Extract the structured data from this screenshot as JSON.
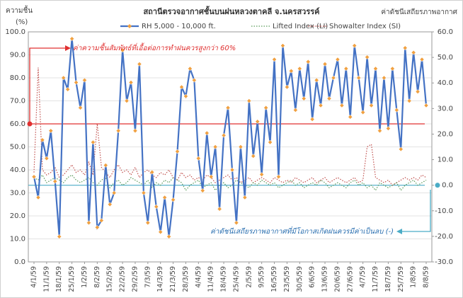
{
  "chart_data": {
    "type": "line",
    "title": "สถานีตรวจอากาศชั้นบนฝนหลวงตาคลี จ.นครสวรรค์",
    "y_label": [
      "ความชื้น",
      "(%)"
    ],
    "y2_label": "ค่าดัชนีเสถียรภาพอากาศ",
    "annotations": [
      "ค่าความชื้นสัมพัทธ์ที่เอื้อต่อการทำฝนควรสูงกว่า 60%",
      "ค่าดัชนีเสถียรภาพอากาศที่มีโอกาสเกิดฝนควรมีค่าเป็นลบ (-)"
    ],
    "threshold_lines": [
      {
        "value": 60,
        "axis": "y",
        "color": "#e03030"
      },
      {
        "value": 0,
        "axis": "y2",
        "color": "#4bacc6"
      }
    ],
    "categories": [
      "4/1/59",
      null,
      null,
      "11/1/59",
      null,
      null,
      "18/1/59",
      null,
      null,
      "25/1/59",
      null,
      null,
      "1/2/59",
      null,
      null,
      "8/2/59",
      null,
      null,
      "15/2/59",
      null,
      null,
      "22/2/59",
      null,
      null,
      "29/2/59",
      null,
      null,
      "7/3/59",
      null,
      null,
      "14/3/59",
      null,
      null,
      "21/3/59",
      null,
      null,
      "28/3/59",
      null,
      null,
      "4/4/59",
      null,
      null,
      "11/4/59",
      null,
      null,
      "18/4/59",
      null,
      null,
      "25/4/59",
      null,
      null,
      "2/5/59",
      null,
      null,
      "9/5/59",
      null,
      null,
      "16/5/59",
      null,
      null,
      "23/5/59",
      null,
      null,
      "30/5/59",
      null,
      null,
      "6/6/59",
      null,
      null,
      "13/6/59",
      null,
      null,
      "20/6/59",
      null,
      null,
      "27/6/59",
      null,
      null,
      "4/7/59",
      null,
      null,
      "11/7/59",
      null,
      null,
      "18/7/59",
      null,
      null,
      "25/7/59",
      null,
      null,
      "1/8/59",
      null,
      null,
      "8/8/59"
    ],
    "series": [
      {
        "name": "RH 5,000 - 10,000 ft.",
        "color": "#4472c4",
        "marker_color": "#f0a040",
        "values": [
          37,
          28,
          53,
          45,
          57,
          35,
          11,
          80,
          75,
          97,
          78,
          67,
          79,
          17,
          52,
          15,
          18,
          42,
          25,
          30,
          57,
          92,
          70,
          78,
          57,
          86,
          30,
          17,
          39,
          24,
          13,
          28,
          11,
          27,
          48,
          76,
          72,
          84,
          79,
          45,
          31,
          56,
          37,
          50,
          23,
          55,
          67,
          40,
          17,
          50,
          28,
          70,
          46,
          61,
          38,
          67,
          52,
          88,
          37,
          94,
          76,
          83,
          66,
          84,
          71,
          87,
          62,
          79,
          68,
          86,
          71,
          80,
          88,
          68,
          84,
          63,
          94,
          80,
          65,
          89,
          68,
          84,
          57,
          80,
          58,
          84,
          66,
          49,
          93,
          70,
          91,
          74,
          88,
          68
        ]
      },
      {
        "name": "Lifted Index (LI)",
        "color": "#5a9a5a",
        "axis": "y2",
        "values": [
          3,
          2,
          4,
          1,
          2,
          3,
          2,
          1,
          3,
          4,
          2,
          1,
          2,
          3,
          1,
          0,
          2,
          3,
          -1,
          1,
          2,
          0,
          1,
          3,
          2,
          1,
          0,
          2,
          -1,
          1,
          0,
          2,
          1,
          3,
          2,
          1,
          -2,
          0,
          1,
          2,
          -1,
          0,
          1,
          -2,
          0,
          1,
          -1,
          0,
          2,
          1,
          0,
          -1,
          1,
          0,
          2,
          1,
          0,
          1,
          -1,
          0,
          1,
          2,
          0,
          1,
          -1,
          0,
          1,
          0,
          2,
          1,
          -1,
          0,
          1,
          0,
          -1,
          1,
          2,
          0,
          1,
          -1,
          0,
          -2,
          1,
          0,
          -1,
          0,
          1,
          -2,
          0,
          1,
          2,
          0,
          1,
          2
        ]
      },
      {
        "name": "Showalter Index (SI)",
        "color": "#c0504d",
        "axis": "y2",
        "values": [
          5,
          46,
          6,
          4,
          5,
          7,
          3,
          4,
          6,
          8,
          5,
          6,
          4,
          9,
          4,
          24,
          7,
          5,
          3,
          6,
          8,
          5,
          6,
          4,
          7,
          3,
          5,
          6,
          4,
          3,
          5,
          4,
          6,
          3,
          2,
          5,
          3,
          4,
          2,
          3,
          2,
          4,
          3,
          1,
          2,
          3,
          4,
          2,
          3,
          1,
          2,
          3,
          1,
          2,
          3,
          2,
          1,
          3,
          2,
          1,
          2,
          1,
          3,
          2,
          1,
          2,
          3,
          1,
          2,
          3,
          1,
          2,
          3,
          2,
          1,
          2,
          3,
          1,
          2,
          15,
          16,
          3,
          2,
          1,
          2,
          0,
          1,
          2,
          3,
          2,
          3,
          2,
          4,
          3
        ]
      }
    ],
    "ylim": [
      0,
      100
    ],
    "yticks": [
      {
        "value": 0,
        "label": "0.0"
      },
      {
        "value": 10,
        "label": "10.0"
      },
      {
        "value": 20,
        "label": "20.0"
      },
      {
        "value": 30,
        "label": "30.0"
      },
      {
        "value": 40,
        "label": "40.0"
      },
      {
        "value": 50,
        "label": "50.0"
      },
      {
        "value": 60,
        "label": "60.0"
      },
      {
        "value": 70,
        "label": "70.0"
      },
      {
        "value": 80,
        "label": "80.0"
      },
      {
        "value": 90,
        "label": "90.0"
      },
      {
        "value": 100,
        "label": "100.0"
      }
    ],
    "y2lim": [
      -30,
      60
    ],
    "y2ticks": [
      {
        "value": -30,
        "label": "-30.0"
      },
      {
        "value": -20,
        "label": "-20.0"
      },
      {
        "value": -10,
        "label": "-10.0"
      },
      {
        "value": 0,
        "label": "0.0"
      },
      {
        "value": 10,
        "label": "10.0"
      },
      {
        "value": 20,
        "label": "20.0"
      },
      {
        "value": 30,
        "label": "30.0"
      },
      {
        "value": 40,
        "label": "40.0"
      },
      {
        "value": 50,
        "label": "50.0"
      },
      {
        "value": 60,
        "label": "60.0"
      }
    ],
    "grid": true
  }
}
